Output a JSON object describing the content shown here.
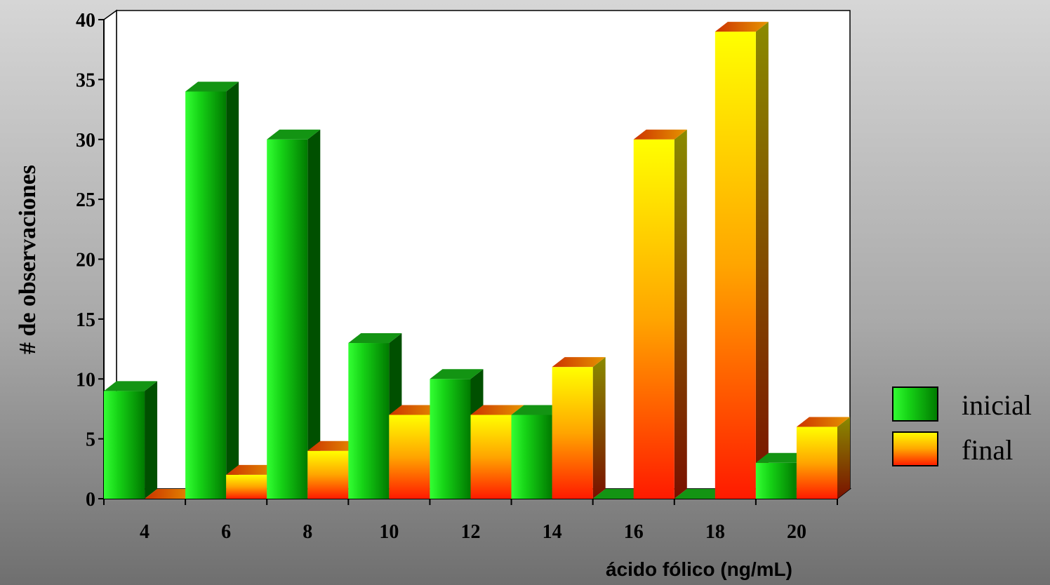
{
  "chart_data": {
    "type": "bar",
    "title": "",
    "xlabel": "ácido fólico (ng/mL)",
    "ylabel": "# de observaciones",
    "categories": [
      "4",
      "6",
      "8",
      "10",
      "12",
      "14",
      "16",
      "18",
      "20"
    ],
    "series": [
      {
        "name": "inicial",
        "values": [
          9,
          34,
          30,
          13,
          10,
          7,
          0,
          0,
          3
        ]
      },
      {
        "name": "final",
        "values": [
          0,
          2,
          4,
          7,
          7,
          11,
          30,
          39,
          6
        ]
      }
    ],
    "ylim": [
      0,
      40
    ],
    "yticks": [
      "0",
      "5",
      "10",
      "15",
      "20",
      "25",
      "30",
      "35",
      "40"
    ],
    "grid": false,
    "legend_position": "right",
    "colors": {
      "inicial_light": "#33ff33",
      "inicial_dark": "#006600",
      "final_top": "#ffff00",
      "final_bottom": "#ff1a00",
      "final_cap": "#cc6600"
    }
  }
}
